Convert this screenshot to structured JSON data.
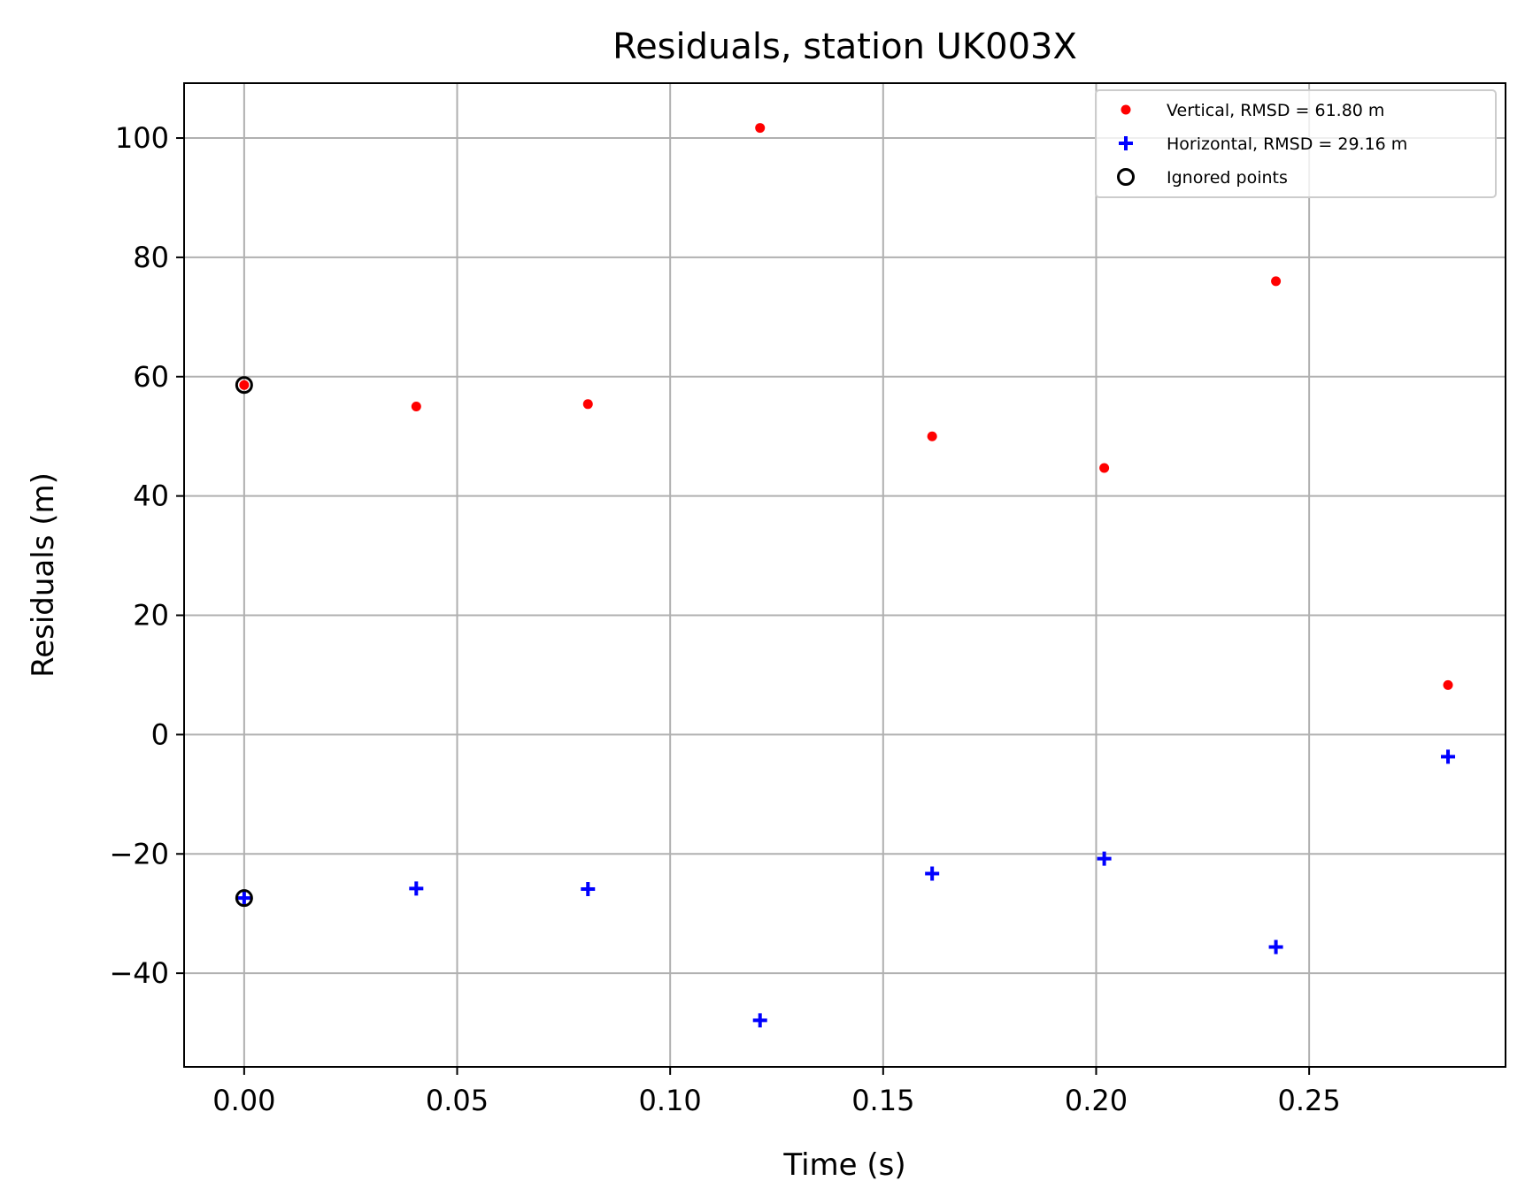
{
  "chart_data": {
    "type": "scatter",
    "title": "Residuals, station UK003X",
    "xlabel": "Time (s)",
    "ylabel": "Residuals (m)",
    "xlim": [
      -0.0141,
      0.2961
    ],
    "ylim": [
      -55.7,
      109.2
    ],
    "xticks": [
      0.0,
      0.05,
      0.1,
      0.15,
      0.2,
      0.25
    ],
    "xtick_labels": [
      "0.00",
      "0.05",
      "0.10",
      "0.15",
      "0.20",
      "0.25"
    ],
    "yticks": [
      -40,
      -20,
      0,
      20,
      40,
      60,
      80,
      100
    ],
    "ytick_labels": [
      "−40",
      "−20",
      "0",
      "20",
      "40",
      "60",
      "80",
      "100"
    ],
    "grid": true,
    "legend_position": "top-right",
    "series": [
      {
        "name": "Vertical, RMSD = 61.80 m",
        "marker": "dot",
        "color": "#ff0000",
        "points": [
          [
            0.0,
            58.6
          ],
          [
            0.0404,
            55.0
          ],
          [
            0.0807,
            55.4
          ],
          [
            0.1211,
            101.7
          ],
          [
            0.1615,
            50.0
          ],
          [
            0.2019,
            44.7
          ],
          [
            0.2422,
            76.0
          ],
          [
            0.2826,
            8.3
          ]
        ]
      },
      {
        "name": "Horizontal, RMSD = 29.16 m",
        "marker": "plus",
        "color": "#0000ff",
        "points": [
          [
            0.0,
            -27.4
          ],
          [
            0.0404,
            -25.8
          ],
          [
            0.0807,
            -25.9
          ],
          [
            0.1211,
            -47.9
          ],
          [
            0.1615,
            -23.3
          ],
          [
            0.2019,
            -20.8
          ],
          [
            0.2422,
            -35.6
          ],
          [
            0.2826,
            -3.7
          ]
        ]
      },
      {
        "name": "Ignored points",
        "marker": "open-circle",
        "color": "#000000",
        "points": [
          [
            0.0,
            58.6
          ],
          [
            0.0,
            -27.4
          ]
        ]
      }
    ]
  }
}
